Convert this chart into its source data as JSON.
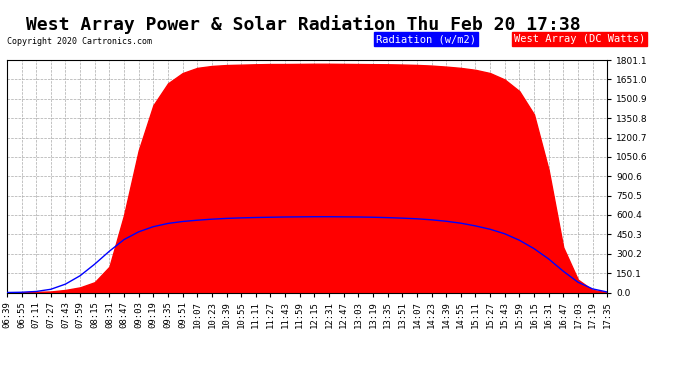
{
  "title": "West Array Power & Solar Radiation Thu Feb 20 17:38",
  "copyright": "Copyright 2020 Cartronics.com",
  "legend_labels": [
    "Radiation (w/m2)",
    "West Array (DC Watts)"
  ],
  "legend_colors": [
    "#0000ff",
    "#ff0000"
  ],
  "y_ticks": [
    0.0,
    150.1,
    300.2,
    450.3,
    600.4,
    750.5,
    900.6,
    1050.6,
    1200.7,
    1350.8,
    1500.9,
    1651.0,
    1801.1
  ],
  "ymax": 1801.1,
  "ymin": 0.0,
  "background_color": "#ffffff",
  "plot_bg_color": "#ffffff",
  "grid_color": "#aaaaaa",
  "x_labels": [
    "06:39",
    "06:55",
    "07:11",
    "07:27",
    "07:43",
    "07:59",
    "08:15",
    "08:31",
    "08:47",
    "09:03",
    "09:19",
    "09:35",
    "09:51",
    "10:07",
    "10:23",
    "10:39",
    "10:55",
    "11:11",
    "11:27",
    "11:43",
    "11:59",
    "12:15",
    "12:31",
    "12:47",
    "13:03",
    "13:19",
    "13:35",
    "13:51",
    "14:07",
    "14:23",
    "14:39",
    "14:55",
    "15:11",
    "15:27",
    "15:43",
    "15:59",
    "16:15",
    "16:31",
    "16:47",
    "17:03",
    "17:19",
    "17:35"
  ],
  "red_values": [
    2,
    2,
    5,
    8,
    20,
    40,
    80,
    200,
    600,
    1100,
    1450,
    1620,
    1700,
    1740,
    1755,
    1762,
    1765,
    1768,
    1770,
    1770,
    1771,
    1772,
    1772,
    1771,
    1770,
    1769,
    1768,
    1766,
    1763,
    1758,
    1750,
    1740,
    1725,
    1700,
    1650,
    1560,
    1380,
    950,
    350,
    100,
    20,
    2
  ],
  "blue_values": [
    0,
    2,
    8,
    25,
    65,
    130,
    220,
    320,
    410,
    470,
    510,
    535,
    550,
    560,
    568,
    574,
    578,
    581,
    583,
    585,
    586,
    587,
    587,
    586,
    585,
    583,
    580,
    576,
    571,
    563,
    552,
    537,
    516,
    490,
    455,
    405,
    340,
    260,
    165,
    80,
    28,
    4
  ],
  "red_color": "#ff0000",
  "blue_color": "#0000ff",
  "title_fontsize": 13,
  "tick_fontsize": 6.5,
  "legend_fontsize": 7.5,
  "figwidth": 6.9,
  "figheight": 3.75,
  "dpi": 100
}
